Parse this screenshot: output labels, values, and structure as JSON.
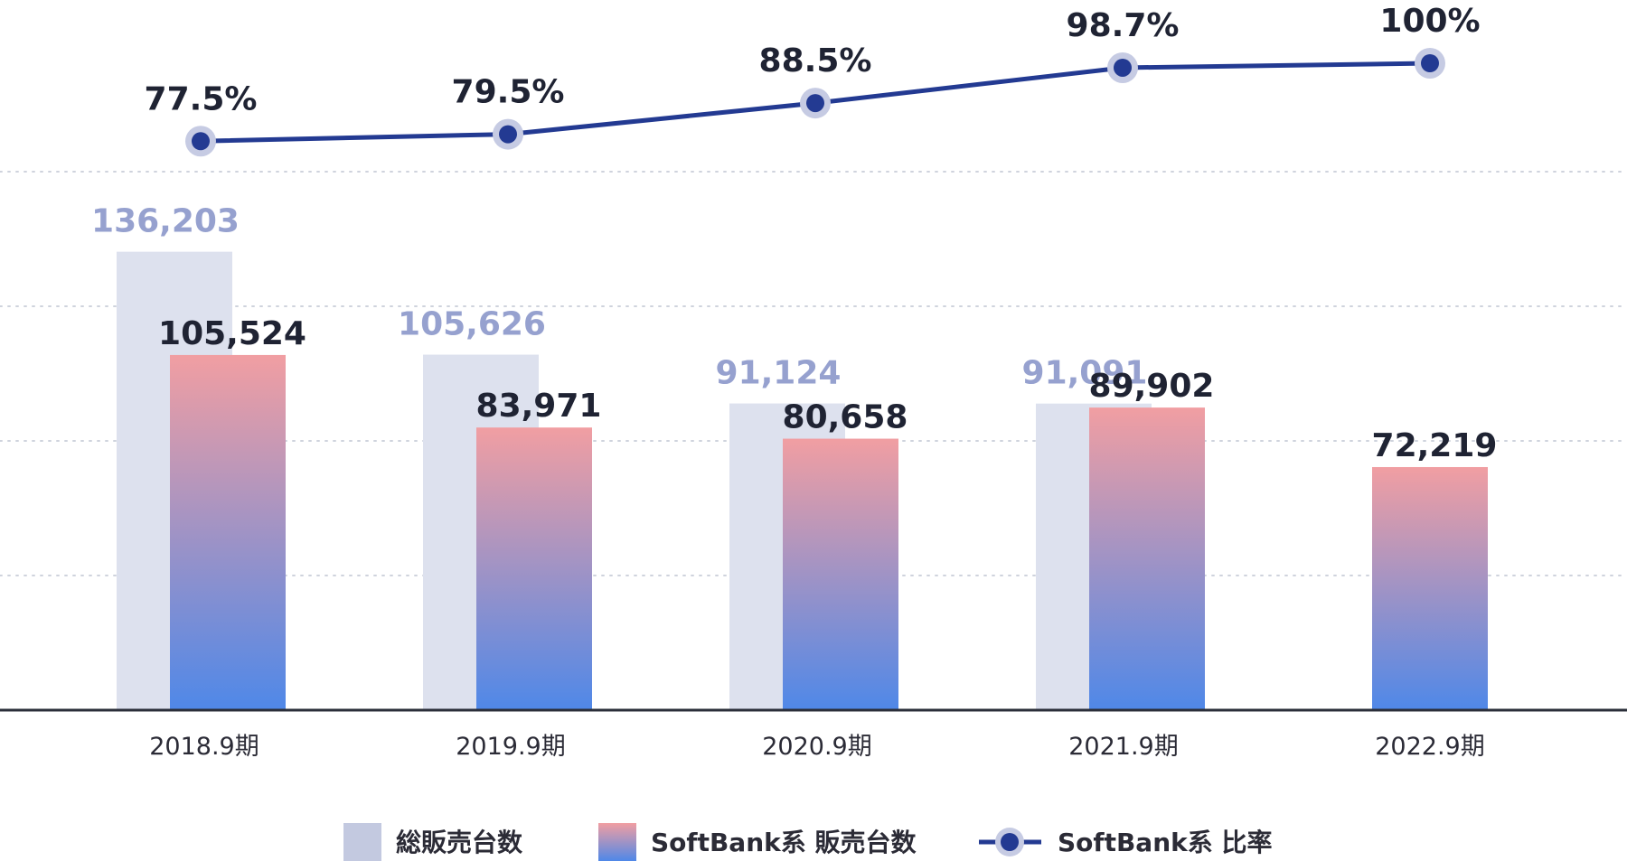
{
  "chart_data": {
    "type": "bar",
    "categories": [
      "2018.9期",
      "2019.9期",
      "2020.9期",
      "2021.9期",
      "2022.9期"
    ],
    "series": [
      {
        "name": "総販売台数",
        "type": "bar",
        "values": [
          136203,
          105626,
          91124,
          91091,
          null
        ],
        "labels": [
          "136,203",
          "105,626",
          "91,124",
          "91,091",
          ""
        ]
      },
      {
        "name": "SoftBank系 販売台数",
        "type": "bar",
        "values": [
          105524,
          83971,
          80658,
          89902,
          72219
        ],
        "labels": [
          "105,524",
          "83,971",
          "80,658",
          "89,902",
          "72,219"
        ]
      },
      {
        "name": "SoftBank系 比率",
        "type": "line",
        "values": [
          77.5,
          79.5,
          88.5,
          98.7,
          100
        ],
        "labels": [
          "77.5%",
          "79.5%",
          "88.5%",
          "98.7%",
          "100%"
        ]
      }
    ],
    "ylim": [
      0,
      160000
    ],
    "ratio_ylim": [
      0,
      100
    ],
    "grid": true,
    "legend_position": "bottom"
  },
  "colors": {
    "total_bar": "#dde1ee",
    "sb_bar_top": "#f19ea2",
    "sb_bar_bottom": "#4f88e8",
    "line": "#233a92",
    "marker_halo": "#c6cbe3",
    "axis": "#2b2f3a",
    "grid": "#cfd3dd"
  }
}
